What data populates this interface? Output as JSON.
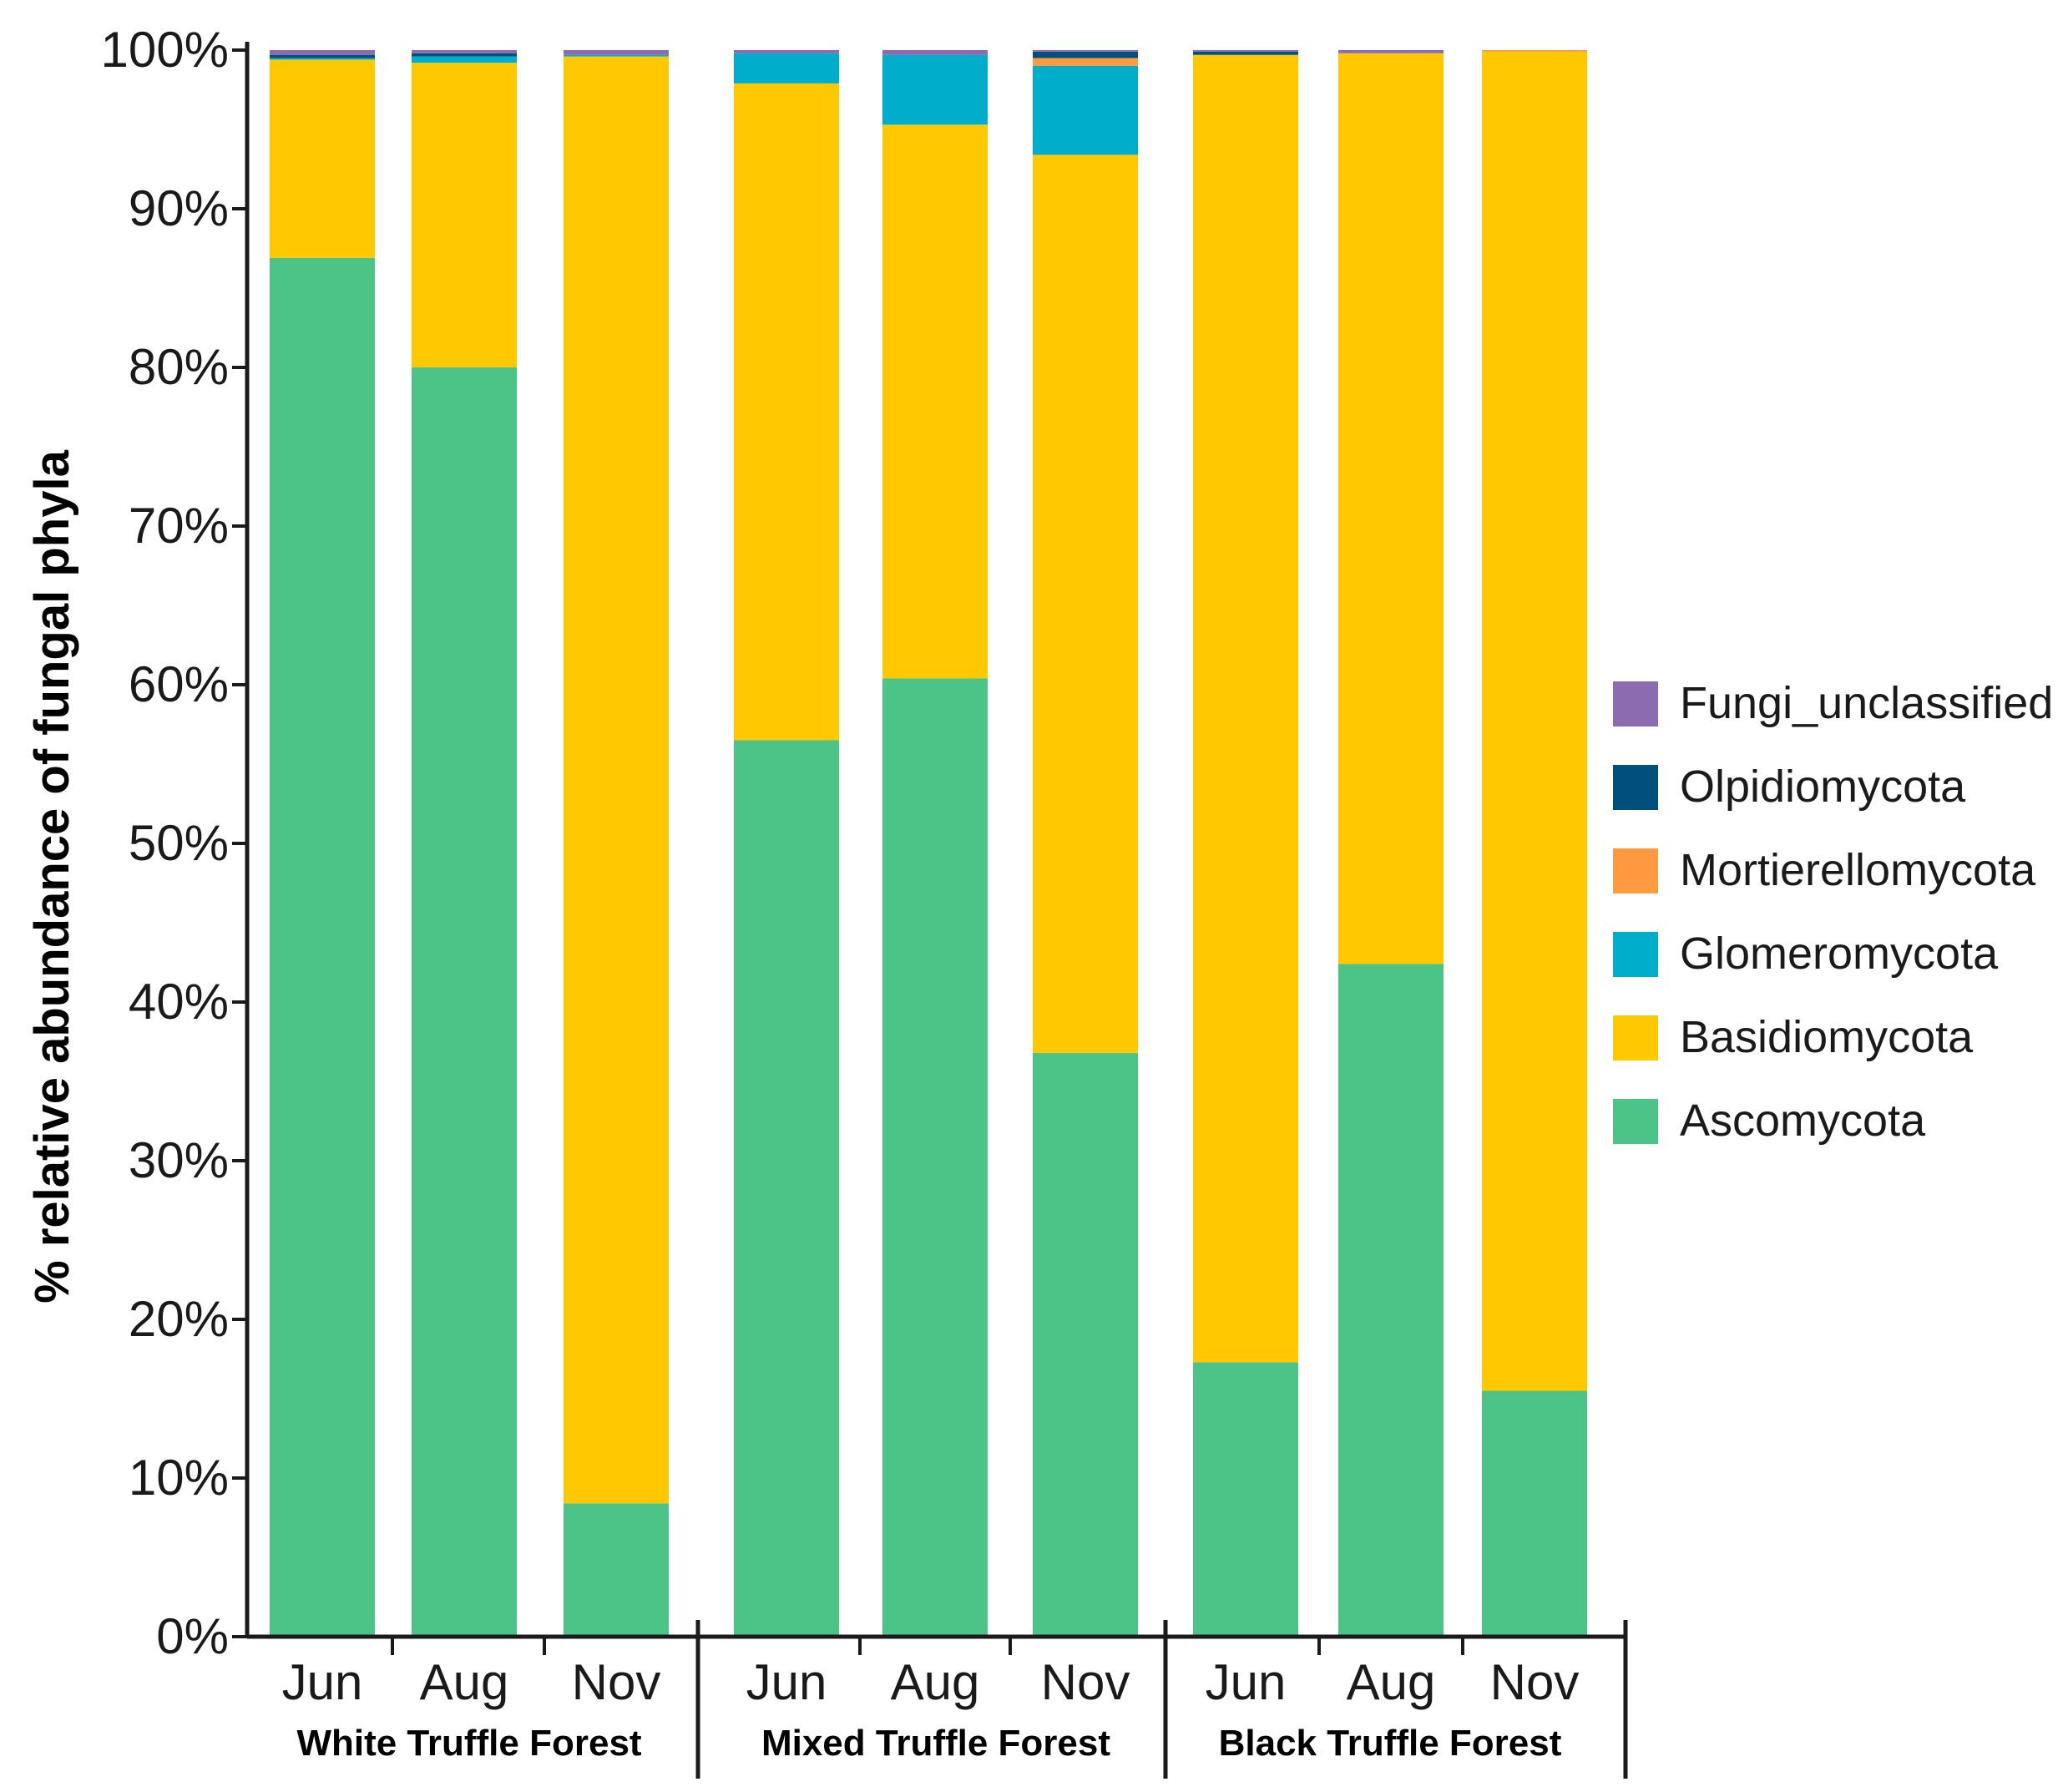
{
  "chart_data": {
    "type": "bar",
    "stacked": true,
    "title": "",
    "xlabel": "",
    "ylabel": "% relative abundance of fungal phyla",
    "ylim": [
      0,
      100
    ],
    "y_ticks": [
      "0%",
      "10%",
      "20%",
      "30%",
      "40%",
      "50%",
      "60%",
      "70%",
      "80%",
      "90%",
      "100%"
    ],
    "groups": [
      {
        "name": "White Truffle Forest",
        "categories": [
          "Jun",
          "Aug",
          "Nov"
        ]
      },
      {
        "name": "Mixed Truffle Forest",
        "categories": [
          "Jun",
          "Aug",
          "Nov"
        ]
      },
      {
        "name": "Black Truffle Forest",
        "categories": [
          "Jun",
          "Aug",
          "Nov"
        ]
      }
    ],
    "categories": [
      "Jun",
      "Aug",
      "Nov",
      "Jun",
      "Aug",
      "Nov",
      "Jun",
      "Aug",
      "Nov"
    ],
    "legend_position": "right",
    "series": [
      {
        "name": "Ascomycota",
        "color": "#4CC387",
        "values": [
          86.9,
          80.0,
          8.4,
          56.5,
          60.4,
          36.8,
          17.3,
          42.4,
          15.5
        ]
      },
      {
        "name": "Basidiomycota",
        "color": "#FFC800",
        "values": [
          12.5,
          19.2,
          91.2,
          41.4,
          34.9,
          56.6,
          82.4,
          57.4,
          84.4
        ]
      },
      {
        "name": "Glomeromycota",
        "color": "#00AECC",
        "values": [
          0.1,
          0.4,
          0.1,
          1.9,
          4.4,
          5.6,
          0.0,
          0.0,
          0.0
        ]
      },
      {
        "name": "Mortierellomycota",
        "color": "#FF9A40",
        "values": [
          0.0,
          0.0,
          0.0,
          0.0,
          0.0,
          0.5,
          0.0,
          0.0,
          0.1
        ]
      },
      {
        "name": "Olpidiomycota",
        "color": "#004F7C",
        "values": [
          0.2,
          0.2,
          0.0,
          0.0,
          0.0,
          0.4,
          0.2,
          0.0,
          0.0
        ]
      },
      {
        "name": "Fungi_unclassified",
        "color": "#8C6BB1",
        "values": [
          0.3,
          0.2,
          0.3,
          0.2,
          0.3,
          0.1,
          0.1,
          0.2,
          0.0
        ]
      }
    ],
    "legend": [
      "Fungi_unclassified",
      "Olpidiomycota",
      "Mortierellomycota",
      "Glomeromycota",
      "Basidiomycota",
      "Ascomycota"
    ]
  }
}
